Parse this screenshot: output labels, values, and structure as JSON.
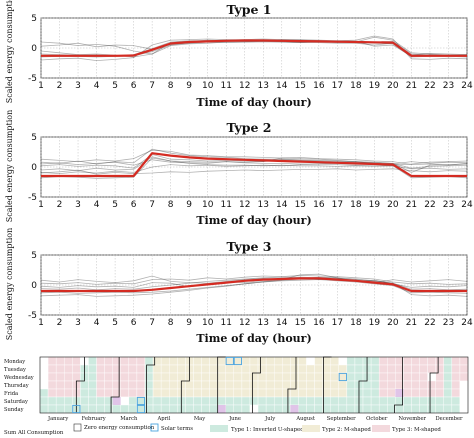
{
  "colors": {
    "red": "#d42b22",
    "individual": "#222222",
    "cal_type1": "#cdeadf",
    "cal_type2": "#f1ecd6",
    "cal_type3": "#f3d9dd",
    "cal_zero": "#ffffff",
    "cal_solar": "#4aa3df",
    "cal_extra": "#e0c4e8"
  },
  "chart_data": [
    {
      "type": "line",
      "title": "Type 1",
      "xlabel": "Time of day (hour)",
      "ylabel": "Scaled energy consumption",
      "x": [
        1,
        2,
        3,
        4,
        5,
        6,
        7,
        8,
        9,
        10,
        11,
        12,
        13,
        14,
        15,
        16,
        17,
        18,
        19,
        20,
        21,
        22,
        23,
        24
      ],
      "xlim": [
        1,
        24
      ],
      "ylim": [
        -5,
        5
      ],
      "yticks": [
        -5,
        0,
        5
      ],
      "grid": true,
      "series": [
        {
          "role": "centroid",
          "color": "#d42b22",
          "values": [
            -1.3,
            -1.3,
            -1.3,
            -1.3,
            -1.3,
            -1.25,
            -0.3,
            0.75,
            1.0,
            1.1,
            1.2,
            1.25,
            1.25,
            1.2,
            1.15,
            1.1,
            1.05,
            1.0,
            0.95,
            0.9,
            -1.3,
            -1.3,
            -1.3,
            -1.3
          ]
        },
        {
          "role": "member",
          "values": [
            -1.0,
            -1.1,
            -1.2,
            -1.2,
            -1.3,
            -1.1,
            -0.1,
            1.0,
            1.2,
            1.2,
            1.3,
            1.4,
            1.3,
            1.3,
            1.2,
            1.2,
            1.0,
            1.1,
            1.0,
            1.1,
            -1.0,
            -1.2,
            -1.2,
            -1.1
          ]
        },
        {
          "role": "member",
          "values": [
            -1.5,
            -1.4,
            -1.4,
            -1.5,
            -1.4,
            -1.3,
            -0.6,
            0.5,
            0.9,
            1.0,
            1.1,
            1.1,
            1.2,
            1.1,
            1.0,
            1.0,
            1.1,
            0.9,
            0.8,
            0.7,
            -1.5,
            -1.4,
            -1.4,
            -1.5
          ]
        },
        {
          "role": "member",
          "values": [
            0.3,
            0.5,
            0.8,
            0.2,
            0.5,
            0.4,
            -0.2,
            0.6,
            0.8,
            1.0,
            0.9,
            1.0,
            1.1,
            1.0,
            0.9,
            1.1,
            0.9,
            1.0,
            1.8,
            1.3,
            -0.8,
            -1.0,
            -1.2,
            -1.3
          ]
        },
        {
          "role": "member",
          "values": [
            -2.0,
            -1.8,
            -1.7,
            -2.1,
            -1.9,
            -1.6,
            0.5,
            1.3,
            1.4,
            1.5,
            1.4,
            1.4,
            1.5,
            1.4,
            1.4,
            1.3,
            1.2,
            1.3,
            2.0,
            1.5,
            -1.8,
            -1.9,
            -1.7,
            -1.8
          ]
        },
        {
          "role": "member",
          "values": [
            1.0,
            0.8,
            0.4,
            0.6,
            0.3,
            -0.5,
            -1.0,
            0.4,
            0.7,
            0.8,
            1.0,
            1.0,
            1.0,
            1.0,
            0.9,
            0.9,
            0.8,
            0.8,
            0.5,
            0.8,
            -1.2,
            -0.9,
            -1.0,
            -1.1
          ]
        },
        {
          "role": "member",
          "values": [
            -0.5,
            -0.8,
            -1.1,
            -1.0,
            -1.2,
            -1.5,
            -1.0,
            0.9,
            1.1,
            1.3,
            1.2,
            1.3,
            1.2,
            1.4,
            1.3,
            1.2,
            1.2,
            1.1,
            0.3,
            0.5,
            -1.4,
            -1.1,
            -1.3,
            -1.2
          ]
        }
      ]
    },
    {
      "type": "line",
      "title": "Type 2",
      "xlabel": "Time of day (hour)",
      "ylabel": "Scaled energy consumption",
      "x": [
        1,
        2,
        3,
        4,
        5,
        6,
        7,
        8,
        9,
        10,
        11,
        12,
        13,
        14,
        15,
        16,
        17,
        18,
        19,
        20,
        21,
        22,
        23,
        24
      ],
      "xlim": [
        1,
        24
      ],
      "ylim": [
        -5,
        5
      ],
      "yticks": [
        -5,
        0,
        5
      ],
      "grid": true,
      "series": [
        {
          "role": "centroid",
          "color": "#d42b22",
          "values": [
            -1.5,
            -1.5,
            -1.5,
            -1.5,
            -1.5,
            -1.5,
            2.3,
            1.9,
            1.6,
            1.4,
            1.3,
            1.2,
            1.1,
            1.0,
            0.9,
            0.8,
            0.7,
            0.6,
            0.5,
            0.4,
            -1.5,
            -1.5,
            -1.5,
            -1.5
          ]
        },
        {
          "role": "member",
          "values": [
            0.8,
            0.6,
            1.0,
            0.5,
            0.9,
            0.7,
            3.0,
            2.3,
            1.9,
            1.7,
            1.6,
            1.4,
            1.3,
            1.3,
            1.2,
            1.1,
            1.0,
            0.9,
            0.8,
            0.6,
            -0.9,
            0.3,
            0.4,
            0.5
          ]
        },
        {
          "role": "member",
          "values": [
            -0.5,
            -0.3,
            -0.6,
            -0.2,
            -0.5,
            -0.4,
            1.7,
            1.0,
            0.6,
            0.4,
            0.3,
            0.3,
            0.2,
            0.3,
            0.2,
            0.2,
            0.1,
            0.2,
            0.1,
            0.2,
            -0.3,
            -0.2,
            -0.4,
            -0.3
          ]
        },
        {
          "role": "member",
          "values": [
            -1.0,
            -0.8,
            -0.5,
            -1.2,
            -0.9,
            -1.1,
            -1.0,
            -0.8,
            -0.9,
            -0.7,
            -0.6,
            -0.5,
            -0.6,
            -0.5,
            -0.4,
            -0.4,
            -0.3,
            -0.5,
            -0.4,
            -0.3,
            -0.6,
            -0.8,
            -0.6,
            -0.7
          ]
        },
        {
          "role": "member",
          "values": [
            1.3,
            1.1,
            0.9,
            1.2,
            1.0,
            1.4,
            2.8,
            2.6,
            2.0,
            1.9,
            1.7,
            1.7,
            1.6,
            1.5,
            1.4,
            1.3,
            1.1,
            0.9,
            0.6,
            0.3,
            0.5,
            0.8,
            0.9,
            1.0
          ]
        },
        {
          "role": "member",
          "values": [
            -1.8,
            -1.6,
            -1.7,
            -1.9,
            -1.8,
            -1.7,
            1.5,
            1.0,
            0.9,
            0.8,
            0.9,
            0.7,
            0.6,
            0.6,
            0.5,
            0.5,
            0.4,
            0.3,
            0.3,
            0.2,
            -1.8,
            -1.7,
            -1.6,
            -1.8
          ]
        },
        {
          "role": "member",
          "values": [
            0.2,
            0.4,
            0.1,
            0.3,
            0.2,
            -0.2,
            2.1,
            1.3,
            1.2,
            1.0,
            1.1,
            1.0,
            0.9,
            1.2,
            1.1,
            1.0,
            0.9,
            0.8,
            0.7,
            0.6,
            -0.2,
            0.1,
            0.2,
            0.3
          ]
        },
        {
          "role": "member",
          "values": [
            -0.9,
            -1.1,
            -0.8,
            -1.0,
            -0.7,
            -0.9,
            0.0,
            0.4,
            0.2,
            0.3,
            0.1,
            0.2,
            0.3,
            0.2,
            0.4,
            0.5,
            0.6,
            0.7,
            0.6,
            0.5,
            0.9,
            0.6,
            0.8,
            0.7
          ]
        },
        {
          "role": "member",
          "values": [
            0.5,
            0.7,
            0.4,
            0.6,
            0.8,
            0.3,
            1.2,
            0.8,
            0.7,
            0.6,
            0.9,
            0.8,
            0.9,
            1.5,
            1.6,
            1.4,
            1.3,
            1.2,
            1.0,
            0.9,
            0.4,
            0.5,
            0.3,
            0.6
          ]
        }
      ]
    },
    {
      "type": "line",
      "title": "Type 3",
      "xlabel": "Time of day (hour)",
      "ylabel": "Scaled energy consumption",
      "x": [
        1,
        2,
        3,
        4,
        5,
        6,
        7,
        8,
        9,
        10,
        11,
        12,
        13,
        14,
        15,
        16,
        17,
        18,
        19,
        20,
        21,
        22,
        23,
        24
      ],
      "xlim": [
        1,
        24
      ],
      "ylim": [
        -5,
        5
      ],
      "yticks": [
        -5,
        0,
        5
      ],
      "grid": true,
      "series": [
        {
          "role": "centroid",
          "color": "#d42b22",
          "values": [
            -1.0,
            -1.0,
            -1.0,
            -1.0,
            -1.0,
            -1.0,
            -0.8,
            -0.5,
            -0.2,
            0.1,
            0.4,
            0.7,
            0.9,
            1.0,
            1.1,
            1.1,
            0.9,
            0.7,
            0.4,
            0.1,
            -1.0,
            -1.0,
            -1.0,
            -1.0
          ]
        },
        {
          "role": "member",
          "values": [
            -0.6,
            -0.7,
            -0.5,
            -0.8,
            -0.6,
            -0.7,
            -0.3,
            0.0,
            0.3,
            0.6,
            0.8,
            1.0,
            1.2,
            1.3,
            1.3,
            1.2,
            1.1,
            0.9,
            0.6,
            0.3,
            -0.7,
            -0.6,
            -0.8,
            -0.7
          ]
        },
        {
          "role": "member",
          "values": [
            -1.3,
            -1.2,
            -1.4,
            -1.3,
            -1.2,
            -1.3,
            -1.2,
            -1.0,
            -0.7,
            -0.4,
            -0.1,
            0.2,
            0.5,
            0.7,
            0.8,
            0.9,
            0.7,
            0.5,
            0.2,
            -0.1,
            -1.3,
            -1.2,
            -1.3,
            -1.4
          ]
        },
        {
          "role": "member",
          "values": [
            0.3,
            0.2,
            0.4,
            0.1,
            0.3,
            0.2,
            0.9,
            1.0,
            0.8,
            1.2,
            1.0,
            1.3,
            1.5,
            1.4,
            1.6,
            1.5,
            1.4,
            1.2,
            1.0,
            0.5,
            0.2,
            0.3,
            0.1,
            0.2
          ]
        },
        {
          "role": "member",
          "values": [
            -1.8,
            -1.7,
            -1.6,
            -1.9,
            -1.8,
            -1.7,
            -1.5,
            -1.2,
            -0.9,
            -0.5,
            -0.2,
            0.2,
            0.5,
            0.8,
            1.0,
            1.3,
            1.2,
            1.0,
            0.7,
            0.3,
            -1.6,
            -1.8,
            -1.7,
            -1.9
          ]
        },
        {
          "role": "member",
          "values": [
            0.8,
            0.5,
            0.9,
            0.6,
            0.4,
            0.7,
            1.5,
            0.6,
            0.4,
            0.3,
            0.6,
            0.9,
            1.1,
            1.0,
            1.2,
            0.9,
            1.0,
            0.8,
            0.3,
            0.9,
            0.5,
            0.7,
            0.9,
            0.6
          ]
        },
        {
          "role": "member",
          "values": [
            -0.2,
            -0.4,
            -0.1,
            -0.3,
            -0.2,
            -0.4,
            0.4,
            0.3,
            -0.3,
            0.1,
            0.5,
            0.4,
            0.6,
            0.9,
            1.7,
            1.8,
            1.2,
            0.6,
            0.8,
            0.2,
            -0.4,
            -0.2,
            -0.3,
            -0.1
          ]
        }
      ]
    },
    {
      "type": "heatmap",
      "rows": [
        "Monday",
        "Tuesday",
        "Wednesday",
        "Thursday",
        "Frida",
        "Saturday",
        "Sunday"
      ],
      "months": [
        "January",
        "February",
        "March",
        "April",
        "May",
        "June",
        "July",
        "August",
        "September",
        "October",
        "November",
        "December"
      ],
      "weeks": 53,
      "week_types": [
        1,
        3,
        3,
        3,
        3,
        1,
        1,
        3,
        3,
        3,
        3,
        3,
        3,
        1,
        2,
        2,
        2,
        2,
        2,
        2,
        2,
        2,
        2,
        2,
        2,
        2,
        2,
        2,
        2,
        2,
        2,
        2,
        2,
        2,
        2,
        2,
        2,
        2,
        1,
        1,
        1,
        1,
        3,
        3,
        3,
        3,
        3,
        3,
        3,
        3,
        1,
        3,
        3
      ],
      "legend": {
        "row_label": "Sum All Consumption",
        "zero_label": "Zero energy consumption",
        "solar_label": "Solar terms",
        "type1_label": "Type 1:  Inverted U-shaped",
        "type2_label": "Type 2:  M-shaped",
        "type3_label": "Type 3:  M-shaped"
      }
    }
  ]
}
